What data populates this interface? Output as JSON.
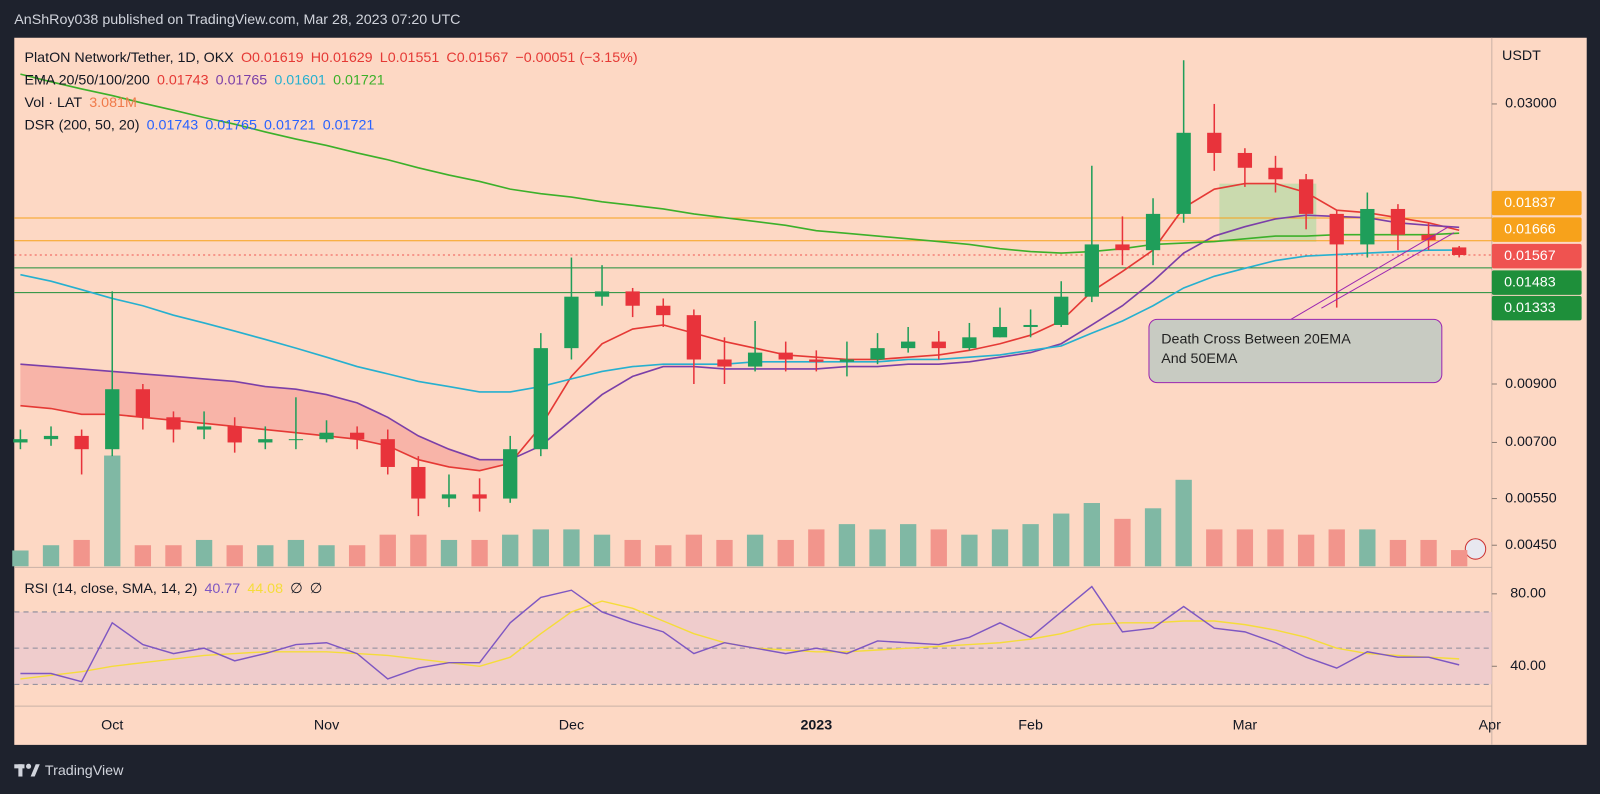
{
  "header": {
    "publisher": "AnShRoy038 published on TradingView.com, Mar 28, 2023 07:20 UTC",
    "currency": "USDT",
    "brand": "TradingView"
  },
  "annotation": {
    "lines": [
      "Death Cross Between 20EMA",
      "And 50EMA"
    ]
  },
  "chart_data": [
    {
      "type": "candlestick",
      "title": "PlatON Network/Tether, 1D, OKX",
      "ohlc_text": [
        "O0.01619",
        "H0.01629",
        "L0.01551",
        "C0.01567",
        "−0.00051 (−3.15%)"
      ],
      "log_scale": true,
      "up_color": "#1f9e5a",
      "down_color": "#e8333b",
      "categories": [
        null,
        null,
        null,
        "Oct",
        null,
        null,
        null,
        null,
        null,
        null,
        "Nov",
        null,
        null,
        null,
        null,
        null,
        null,
        null,
        "Dec",
        null,
        null,
        null,
        null,
        null,
        null,
        null,
        "2023",
        null,
        null,
        null,
        null,
        null,
        null,
        "Feb",
        null,
        null,
        null,
        null,
        null,
        null,
        "Mar",
        null,
        null,
        null,
        null,
        null,
        null,
        null,
        "Apr"
      ],
      "open": [
        0.007,
        0.0071,
        0.0072,
        0.0068,
        0.0088,
        0.0078,
        0.0074,
        0.0075,
        0.007,
        0.0071,
        0.0071,
        0.0073,
        0.0071,
        0.0063,
        0.0055,
        0.0056,
        0.0055,
        0.0068,
        0.0105,
        0.0131,
        0.0134,
        0.0126,
        0.0121,
        0.01,
        0.0097,
        0.0103,
        0.01,
        0.0099,
        0.01,
        0.0105,
        0.0108,
        0.0105,
        0.011,
        0.0115,
        0.0116,
        0.0131,
        0.0164,
        0.016,
        0.0187,
        0.0265,
        0.0243,
        0.0228,
        0.0217,
        0.0187,
        0.0164,
        0.0191,
        0.0171,
        0.01619,
        null
      ],
      "high": [
        0.0074,
        0.0075,
        0.0074,
        0.0134,
        0.009,
        0.008,
        0.008,
        0.0078,
        0.0075,
        0.0085,
        0.0077,
        0.0075,
        0.0074,
        0.0066,
        0.0061,
        0.006,
        0.0072,
        0.0112,
        0.0155,
        0.015,
        0.0136,
        0.013,
        0.0124,
        0.011,
        0.0118,
        0.0108,
        0.0104,
        0.0108,
        0.0112,
        0.0115,
        0.0113,
        0.0117,
        0.0125,
        0.0124,
        0.014,
        0.023,
        0.0185,
        0.02,
        0.0362,
        0.03,
        0.0248,
        0.024,
        0.0222,
        0.019,
        0.0205,
        0.0195,
        0.018,
        0.01629,
        null
      ],
      "low": [
        0.0068,
        0.0069,
        0.0061,
        0.0066,
        0.0074,
        0.007,
        0.0071,
        0.0067,
        0.0068,
        0.0068,
        0.007,
        0.0068,
        0.0061,
        0.0051,
        0.0053,
        0.0052,
        0.0054,
        0.0066,
        0.01,
        0.0126,
        0.012,
        0.0115,
        0.009,
        0.009,
        0.0095,
        0.0095,
        0.0095,
        0.0093,
        0.0098,
        0.0103,
        0.01,
        0.0104,
        0.011,
        0.011,
        0.0115,
        0.0128,
        0.015,
        0.015,
        0.018,
        0.0225,
        0.021,
        0.0205,
        0.0175,
        0.0125,
        0.0155,
        0.016,
        0.016,
        0.01551,
        null
      ],
      "close": [
        0.0071,
        0.0072,
        0.0068,
        0.0088,
        0.0078,
        0.0074,
        0.0075,
        0.007,
        0.0071,
        0.0071,
        0.0073,
        0.0071,
        0.0063,
        0.0055,
        0.0056,
        0.0055,
        0.0068,
        0.0105,
        0.0131,
        0.0134,
        0.0126,
        0.0121,
        0.01,
        0.0097,
        0.0103,
        0.01,
        0.0099,
        0.01,
        0.0105,
        0.0108,
        0.0105,
        0.011,
        0.0115,
        0.0116,
        0.0131,
        0.0164,
        0.016,
        0.0187,
        0.0265,
        0.0243,
        0.0228,
        0.0217,
        0.0187,
        0.0164,
        0.0191,
        0.0171,
        0.0167,
        0.01567,
        null
      ],
      "ema_label": "EMA 20/50/100/200",
      "series": [
        {
          "color": "#e53935",
          "values": [
            0.0082,
            0.0081,
            0.0079,
            0.0079,
            0.0078,
            0.0077,
            0.0076,
            0.0075,
            0.0074,
            0.0073,
            0.0072,
            0.0071,
            0.0069,
            0.0065,
            0.0063,
            0.0062,
            0.0064,
            0.0075,
            0.0093,
            0.0107,
            0.0114,
            0.0116,
            0.0112,
            0.0108,
            0.0105,
            0.0102,
            0.0101,
            0.01,
            0.01,
            0.0101,
            0.0102,
            0.0104,
            0.0107,
            0.0111,
            0.0118,
            0.0134,
            0.0146,
            0.016,
            0.0192,
            0.0208,
            0.0213,
            0.0213,
            0.0205,
            0.019,
            0.0188,
            0.0184,
            0.018,
            0.01743,
            null
          ]
        },
        {
          "color": "#7b3fa8",
          "values": [
            0.0098,
            0.0097,
            0.0096,
            0.0095,
            0.0094,
            0.0093,
            0.0092,
            0.0091,
            0.0089,
            0.0088,
            0.0086,
            0.0083,
            0.0078,
            0.0072,
            0.0068,
            0.0065,
            0.0065,
            0.0069,
            0.0077,
            0.0086,
            0.0093,
            0.0097,
            0.0097,
            0.0096,
            0.0096,
            0.0096,
            0.0096,
            0.0097,
            0.0097,
            0.0098,
            0.0098,
            0.0099,
            0.0101,
            0.0103,
            0.0107,
            0.0116,
            0.0126,
            0.014,
            0.0158,
            0.017,
            0.0177,
            0.0183,
            0.0186,
            0.0185,
            0.0184,
            0.018,
            0.0178,
            0.01765,
            null
          ]
        },
        {
          "color": "#26b0cf",
          "values": [
            0.0144,
            0.014,
            0.0135,
            0.013,
            0.0126,
            0.0121,
            0.0117,
            0.0113,
            0.0109,
            0.0105,
            0.0101,
            0.0097,
            0.0094,
            0.0091,
            0.0089,
            0.0087,
            0.0087,
            0.0089,
            0.0092,
            0.0095,
            0.0097,
            0.0098,
            0.0098,
            0.0098,
            0.0099,
            0.0099,
            0.0099,
            0.0099,
            0.0099,
            0.01,
            0.01,
            0.0101,
            0.0102,
            0.0104,
            0.0106,
            0.0112,
            0.0118,
            0.0126,
            0.0136,
            0.0143,
            0.0148,
            0.0153,
            0.0156,
            0.0157,
            0.0158,
            0.0159,
            0.016,
            0.01601,
            null
          ]
        },
        {
          "color": "#3cb02a",
          "values": [
            0.0341,
            0.033,
            0.032,
            0.0311,
            0.0301,
            0.0292,
            0.0283,
            0.0275,
            0.0266,
            0.0258,
            0.0251,
            0.0243,
            0.0236,
            0.0228,
            0.0221,
            0.0215,
            0.0208,
            0.0204,
            0.0201,
            0.0197,
            0.0194,
            0.0191,
            0.0187,
            0.0184,
            0.0181,
            0.0178,
            0.0174,
            0.0172,
            0.017,
            0.0168,
            0.0166,
            0.0164,
            0.0161,
            0.0159,
            0.0158,
            0.0159,
            0.0161,
            0.0164,
            0.0165,
            0.0166,
            0.0168,
            0.017,
            0.017,
            0.0171,
            0.0171,
            0.0171,
            0.0171,
            0.01721,
            null
          ]
        }
      ],
      "dsr": {
        "label": "DSR (200, 50, 20)",
        "values": [
          0.01743,
          0.01765,
          0.01721,
          0.01721
        ],
        "color": "#2962ff"
      },
      "ylim": [
        0.00411,
        0.0397
      ],
      "yticks": [
        {
          "value": 0.03,
          "label": "0.03000"
        },
        {
          "value": 0.009,
          "label": "0.00900"
        },
        {
          "value": 0.007,
          "label": "0.00700"
        },
        {
          "value": 0.0055,
          "label": "0.00550"
        },
        {
          "value": 0.0045,
          "label": "0.00450"
        }
      ],
      "hlines": [
        {
          "value": 0.01837,
          "color": "#f7a21b"
        },
        {
          "value": 0.01666,
          "color": "#f7a21b"
        },
        {
          "value": 0.01567,
          "color": "#ef5350"
        },
        {
          "value": 0.01483,
          "color": "#1e8f3a"
        },
        {
          "value": 0.01333,
          "color": "#1e8f3a"
        }
      ]
    },
    {
      "type": "bar",
      "label": "Vol · LAT",
      "legend_value": "3.081M",
      "up_color": "#80b8a4",
      "down_color": "#f2958c",
      "values": [
        3,
        4,
        5,
        21,
        4,
        4,
        5,
        4,
        4,
        5,
        4,
        4,
        6,
        6,
        5,
        5,
        6,
        7,
        7,
        6,
        5,
        4,
        6,
        5,
        6,
        5,
        7,
        8,
        7,
        8,
        7,
        6,
        7,
        8,
        10,
        12,
        9,
        11,
        16.4,
        7,
        7,
        7,
        6,
        7,
        7,
        5,
        5,
        3.081,
        null
      ],
      "ylim": [
        0,
        100
      ]
    },
    {
      "type": "line",
      "title": "RSI (14, close, SMA, 14, 2)",
      "extra": [
        "∅",
        "∅"
      ],
      "series": [
        {
          "color": "#7e57c2",
          "values": [
            36,
            36,
            31.5,
            64,
            52,
            47,
            50,
            43,
            47,
            52,
            53,
            47,
            33,
            39,
            42,
            42,
            64,
            78,
            82,
            70,
            64,
            59,
            47,
            53,
            50,
            47,
            50,
            47,
            54,
            53,
            52,
            56,
            64,
            56,
            70,
            84,
            59,
            61,
            73,
            61,
            59,
            53,
            45,
            39,
            48,
            45,
            45,
            40.77,
            null
          ]
        },
        {
          "color": "#f5dc3a",
          "values": [
            33,
            35,
            37,
            40,
            42,
            44,
            46,
            47,
            48,
            48,
            48,
            47,
            46,
            44,
            42,
            40,
            45,
            58,
            70,
            76,
            72,
            65,
            58,
            53,
            50,
            49,
            48,
            48,
            49,
            50,
            51,
            52,
            53,
            55,
            58,
            63,
            64,
            64,
            65,
            65,
            63,
            60,
            56,
            50,
            47,
            46,
            45,
            44.08,
            null
          ]
        }
      ],
      "ylim": [
        18,
        93.5
      ],
      "yticks": [
        {
          "value": 80,
          "label": "80.00"
        },
        {
          "value": 40,
          "label": "40.00"
        }
      ],
      "levels": [
        70,
        50,
        30
      ]
    }
  ]
}
